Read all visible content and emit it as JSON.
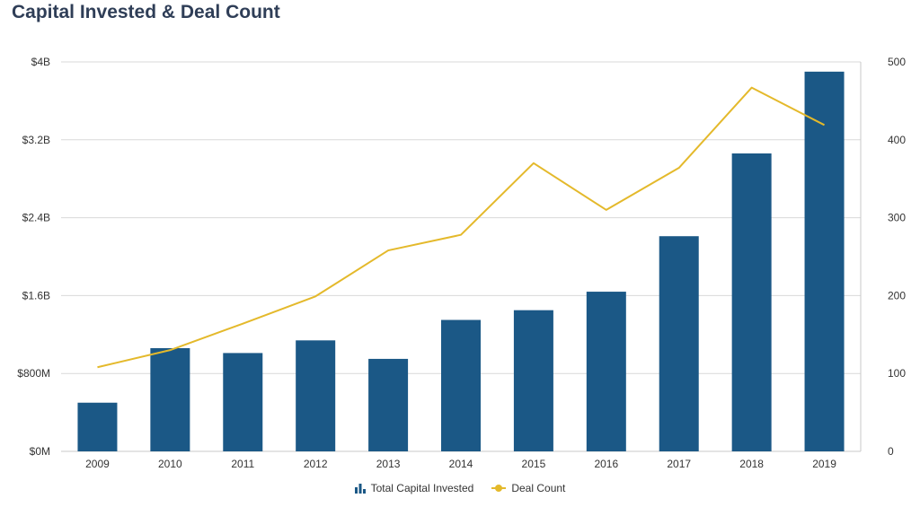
{
  "chart_data": {
    "type": "bar",
    "title": "Capital Invested & Deal Count",
    "categories": [
      "2009",
      "2010",
      "2011",
      "2012",
      "2013",
      "2014",
      "2015",
      "2016",
      "2017",
      "2018",
      "2019"
    ],
    "series": [
      {
        "name": "Total Capital Invested",
        "type": "bar",
        "axis": "left",
        "unit": "USD",
        "values": [
          500000000,
          1060000000,
          1010000000,
          1140000000,
          950000000,
          1350000000,
          1450000000,
          1640000000,
          2210000000,
          3060000000,
          3900000000
        ],
        "color": "#1b5886"
      },
      {
        "name": "Deal Count",
        "type": "line",
        "axis": "right",
        "values": [
          108,
          130,
          164,
          199,
          258,
          278,
          370,
          310,
          364,
          467,
          419
        ],
        "color": "#e4b92b"
      }
    ],
    "y_left": {
      "ylim": [
        0,
        4000000000
      ],
      "ticks": [
        0,
        800000000,
        1600000000,
        2400000000,
        3200000000,
        4000000000
      ],
      "tick_labels": [
        "$0M",
        "$800M",
        "$1.6B",
        "$2.4B",
        "$3.2B",
        "$4B"
      ]
    },
    "y_right": {
      "ylim": [
        0,
        500
      ],
      "ticks": [
        0,
        100,
        200,
        300,
        400,
        500
      ],
      "tick_labels": [
        "0",
        "100",
        "200",
        "300",
        "400",
        "500"
      ]
    },
    "grid": true,
    "legend": "bottom-center"
  }
}
